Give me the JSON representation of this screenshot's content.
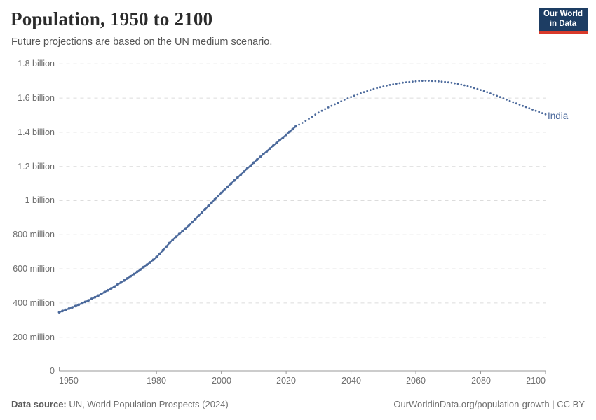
{
  "header": {
    "title": "Population, 1950 to 2100",
    "subtitle": "Future projections are based on the UN medium scenario.",
    "logo_line1": "Our World",
    "logo_line2": "in Data",
    "logo_bg": "#1d3d63",
    "logo_bar": "#d93a2b"
  },
  "footer": {
    "source_label": "Data source:",
    "source_text": " UN, World Population Prospects (2024)",
    "url_text": "OurWorldinData.org/population-growth",
    "license_sep": " | ",
    "license_text": "CC BY"
  },
  "chart_data": {
    "type": "line",
    "title": "Population, 1950 to 2100",
    "subtitle": "Future projections are based on the UN medium scenario.",
    "entity": "India",
    "entity_label": "India",
    "unit": "people",
    "xlim": [
      1950,
      2100
    ],
    "ylim_millions": [
      0,
      1800
    ],
    "grid": "dashed-horizontal",
    "legend_position": "end-of-line",
    "line_color": "#4c6a9c",
    "grid_color": "#dcdcdc",
    "axis_color": "#999999",
    "tick_text_color": "#6e6e6e",
    "yticks": [
      {
        "value_millions": 0,
        "label": "0"
      },
      {
        "value_millions": 200,
        "label": "200 million"
      },
      {
        "value_millions": 400,
        "label": "400 million"
      },
      {
        "value_millions": 600,
        "label": "600 million"
      },
      {
        "value_millions": 800,
        "label": "800 million"
      },
      {
        "value_millions": 1000,
        "label": "1 billion"
      },
      {
        "value_millions": 1200,
        "label": "1.2 billion"
      },
      {
        "value_millions": 1400,
        "label": "1.4 billion"
      },
      {
        "value_millions": 1600,
        "label": "1.6 billion"
      },
      {
        "value_millions": 1800,
        "label": "1.8 billion"
      }
    ],
    "xticks": [
      {
        "year": 1950,
        "label": "1950"
      },
      {
        "year": 1980,
        "label": "1980"
      },
      {
        "year": 2000,
        "label": "2000"
      },
      {
        "year": 2020,
        "label": "2020"
      },
      {
        "year": 2040,
        "label": "2040"
      },
      {
        "year": 2060,
        "label": "2060"
      },
      {
        "year": 2080,
        "label": "2080"
      },
      {
        "year": 2100,
        "label": "2100"
      }
    ],
    "series": [
      {
        "name": "India — estimates",
        "style": "solid",
        "points_year_millions": [
          [
            1950,
            346
          ],
          [
            1955,
            382
          ],
          [
            1960,
            424
          ],
          [
            1965,
            474
          ],
          [
            1970,
            531
          ],
          [
            1975,
            596
          ],
          [
            1980,
            669
          ],
          [
            1985,
            770
          ],
          [
            1990,
            855
          ],
          [
            1995,
            950
          ],
          [
            2000,
            1045
          ],
          [
            2005,
            1135
          ],
          [
            2010,
            1222
          ],
          [
            2015,
            1305
          ],
          [
            2020,
            1385
          ],
          [
            2023,
            1435
          ]
        ]
      },
      {
        "name": "India — UN medium scenario projection",
        "style": "dotted",
        "points_year_millions": [
          [
            2023,
            1435
          ],
          [
            2025,
            1455
          ],
          [
            2030,
            1515
          ],
          [
            2035,
            1564
          ],
          [
            2040,
            1606
          ],
          [
            2045,
            1641
          ],
          [
            2050,
            1668
          ],
          [
            2055,
            1687
          ],
          [
            2060,
            1698
          ],
          [
            2063,
            1701
          ],
          [
            2065,
            1700
          ],
          [
            2070,
            1692
          ],
          [
            2075,
            1674
          ],
          [
            2080,
            1647
          ],
          [
            2085,
            1613
          ],
          [
            2090,
            1576
          ],
          [
            2095,
            1540
          ],
          [
            2100,
            1505
          ]
        ]
      }
    ]
  }
}
